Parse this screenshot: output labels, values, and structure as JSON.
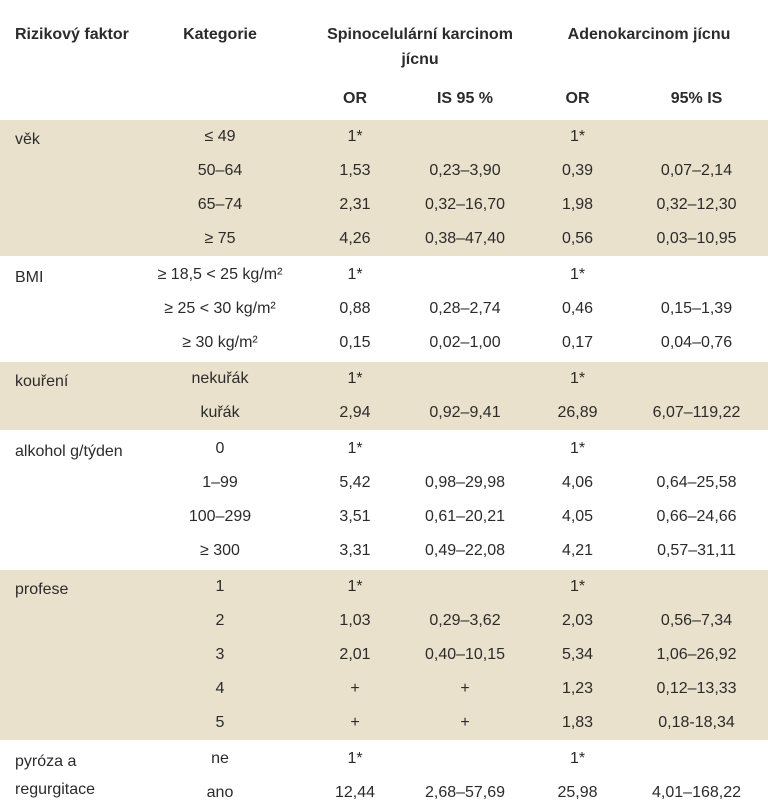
{
  "header": {
    "factor_label": "Rizikový faktor",
    "category_label": "Kategorie",
    "scc_label": "Spinocelulární karcinom jícnu",
    "adeno_label": "Adenokarcinom jícnu",
    "scc_or": "OR",
    "scc_ci": "IS 95 %",
    "adeno_or": "OR",
    "adeno_ci": "95% IS"
  },
  "groups": [
    {
      "factor": "věk",
      "rows": [
        {
          "category": "≤ 49",
          "scc_or": "1*",
          "scc_ci": "",
          "adeno_or": "1*",
          "adeno_ci": ""
        },
        {
          "category": "50–64",
          "scc_or": "1,53",
          "scc_ci": "0,23–3,90",
          "adeno_or": "0,39",
          "adeno_ci": "0,07–2,14"
        },
        {
          "category": "65–74",
          "scc_or": "2,31",
          "scc_ci": "0,32–16,70",
          "adeno_or": "1,98",
          "adeno_ci": "0,32–12,30"
        },
        {
          "category": "≥ 75",
          "scc_or": "4,26",
          "scc_ci": "0,38–47,40",
          "adeno_or": "0,56",
          "adeno_ci": "0,03–10,95"
        }
      ]
    },
    {
      "factor": "BMI",
      "rows": [
        {
          "category": "≥ 18,5 < 25 kg/m²",
          "scc_or": "1*",
          "scc_ci": "",
          "adeno_or": "1*",
          "adeno_ci": ""
        },
        {
          "category": "≥ 25 < 30 kg/m²",
          "scc_or": "0,88",
          "scc_ci": "0,28–2,74",
          "adeno_or": "0,46",
          "adeno_ci": "0,15–1,39"
        },
        {
          "category": "≥ 30 kg/m²",
          "scc_or": "0,15",
          "scc_ci": "0,02–1,00",
          "adeno_or": "0,17",
          "adeno_ci": "0,04–0,76"
        }
      ]
    },
    {
      "factor": "kouření",
      "rows": [
        {
          "category": "nekuřák",
          "scc_or": "1*",
          "scc_ci": "",
          "adeno_or": "1*",
          "adeno_ci": ""
        },
        {
          "category": "kuřák",
          "scc_or": "2,94",
          "scc_ci": "0,92–9,41",
          "adeno_or": "26,89",
          "adeno_ci": "6,07–119,22"
        }
      ]
    },
    {
      "factor": "alkohol g/týden",
      "rows": [
        {
          "category": "0",
          "scc_or": "1*",
          "scc_ci": "",
          "adeno_or": "1*",
          "adeno_ci": ""
        },
        {
          "category": "1–99",
          "scc_or": "5,42",
          "scc_ci": "0,98–29,98",
          "adeno_or": "4,06",
          "adeno_ci": "0,64–25,58"
        },
        {
          "category": "100–299",
          "scc_or": "3,51",
          "scc_ci": "0,61–20,21",
          "adeno_or": "4,05",
          "adeno_ci": "0,66–24,66"
        },
        {
          "category": "≥ 300",
          "scc_or": "3,31",
          "scc_ci": "0,49–22,08",
          "adeno_or": "4,21",
          "adeno_ci": "0,57–31,11"
        }
      ]
    },
    {
      "factor": "profese",
      "rows": [
        {
          "category": "1",
          "scc_or": "1*",
          "scc_ci": "",
          "adeno_or": "1*",
          "adeno_ci": ""
        },
        {
          "category": "2",
          "scc_or": "1,03",
          "scc_ci": "0,29–3,62",
          "adeno_or": "2,03",
          "adeno_ci": "0,56–7,34"
        },
        {
          "category": "3",
          "scc_or": "2,01",
          "scc_ci": "0,40–10,15",
          "adeno_or": "5,34",
          "adeno_ci": "1,06–26,92"
        },
        {
          "category": "4",
          "scc_or": "+",
          "scc_ci": "+",
          "adeno_or": "1,23",
          "adeno_ci": "0,12–13,33"
        },
        {
          "category": "5",
          "scc_or": "+",
          "scc_ci": "+",
          "adeno_or": "1,83",
          "adeno_ci": "0,18-18,34"
        }
      ]
    },
    {
      "factor": "pyróza a regurgitace",
      "rows": [
        {
          "category": "ne",
          "scc_or": "1*",
          "scc_ci": "",
          "adeno_or": "1*",
          "adeno_ci": ""
        },
        {
          "category": "ano",
          "scc_or": "12,44",
          "scc_ci": "2,68–57,69",
          "adeno_or": "25,98",
          "adeno_ci": "4,01–168,22"
        }
      ]
    }
  ]
}
